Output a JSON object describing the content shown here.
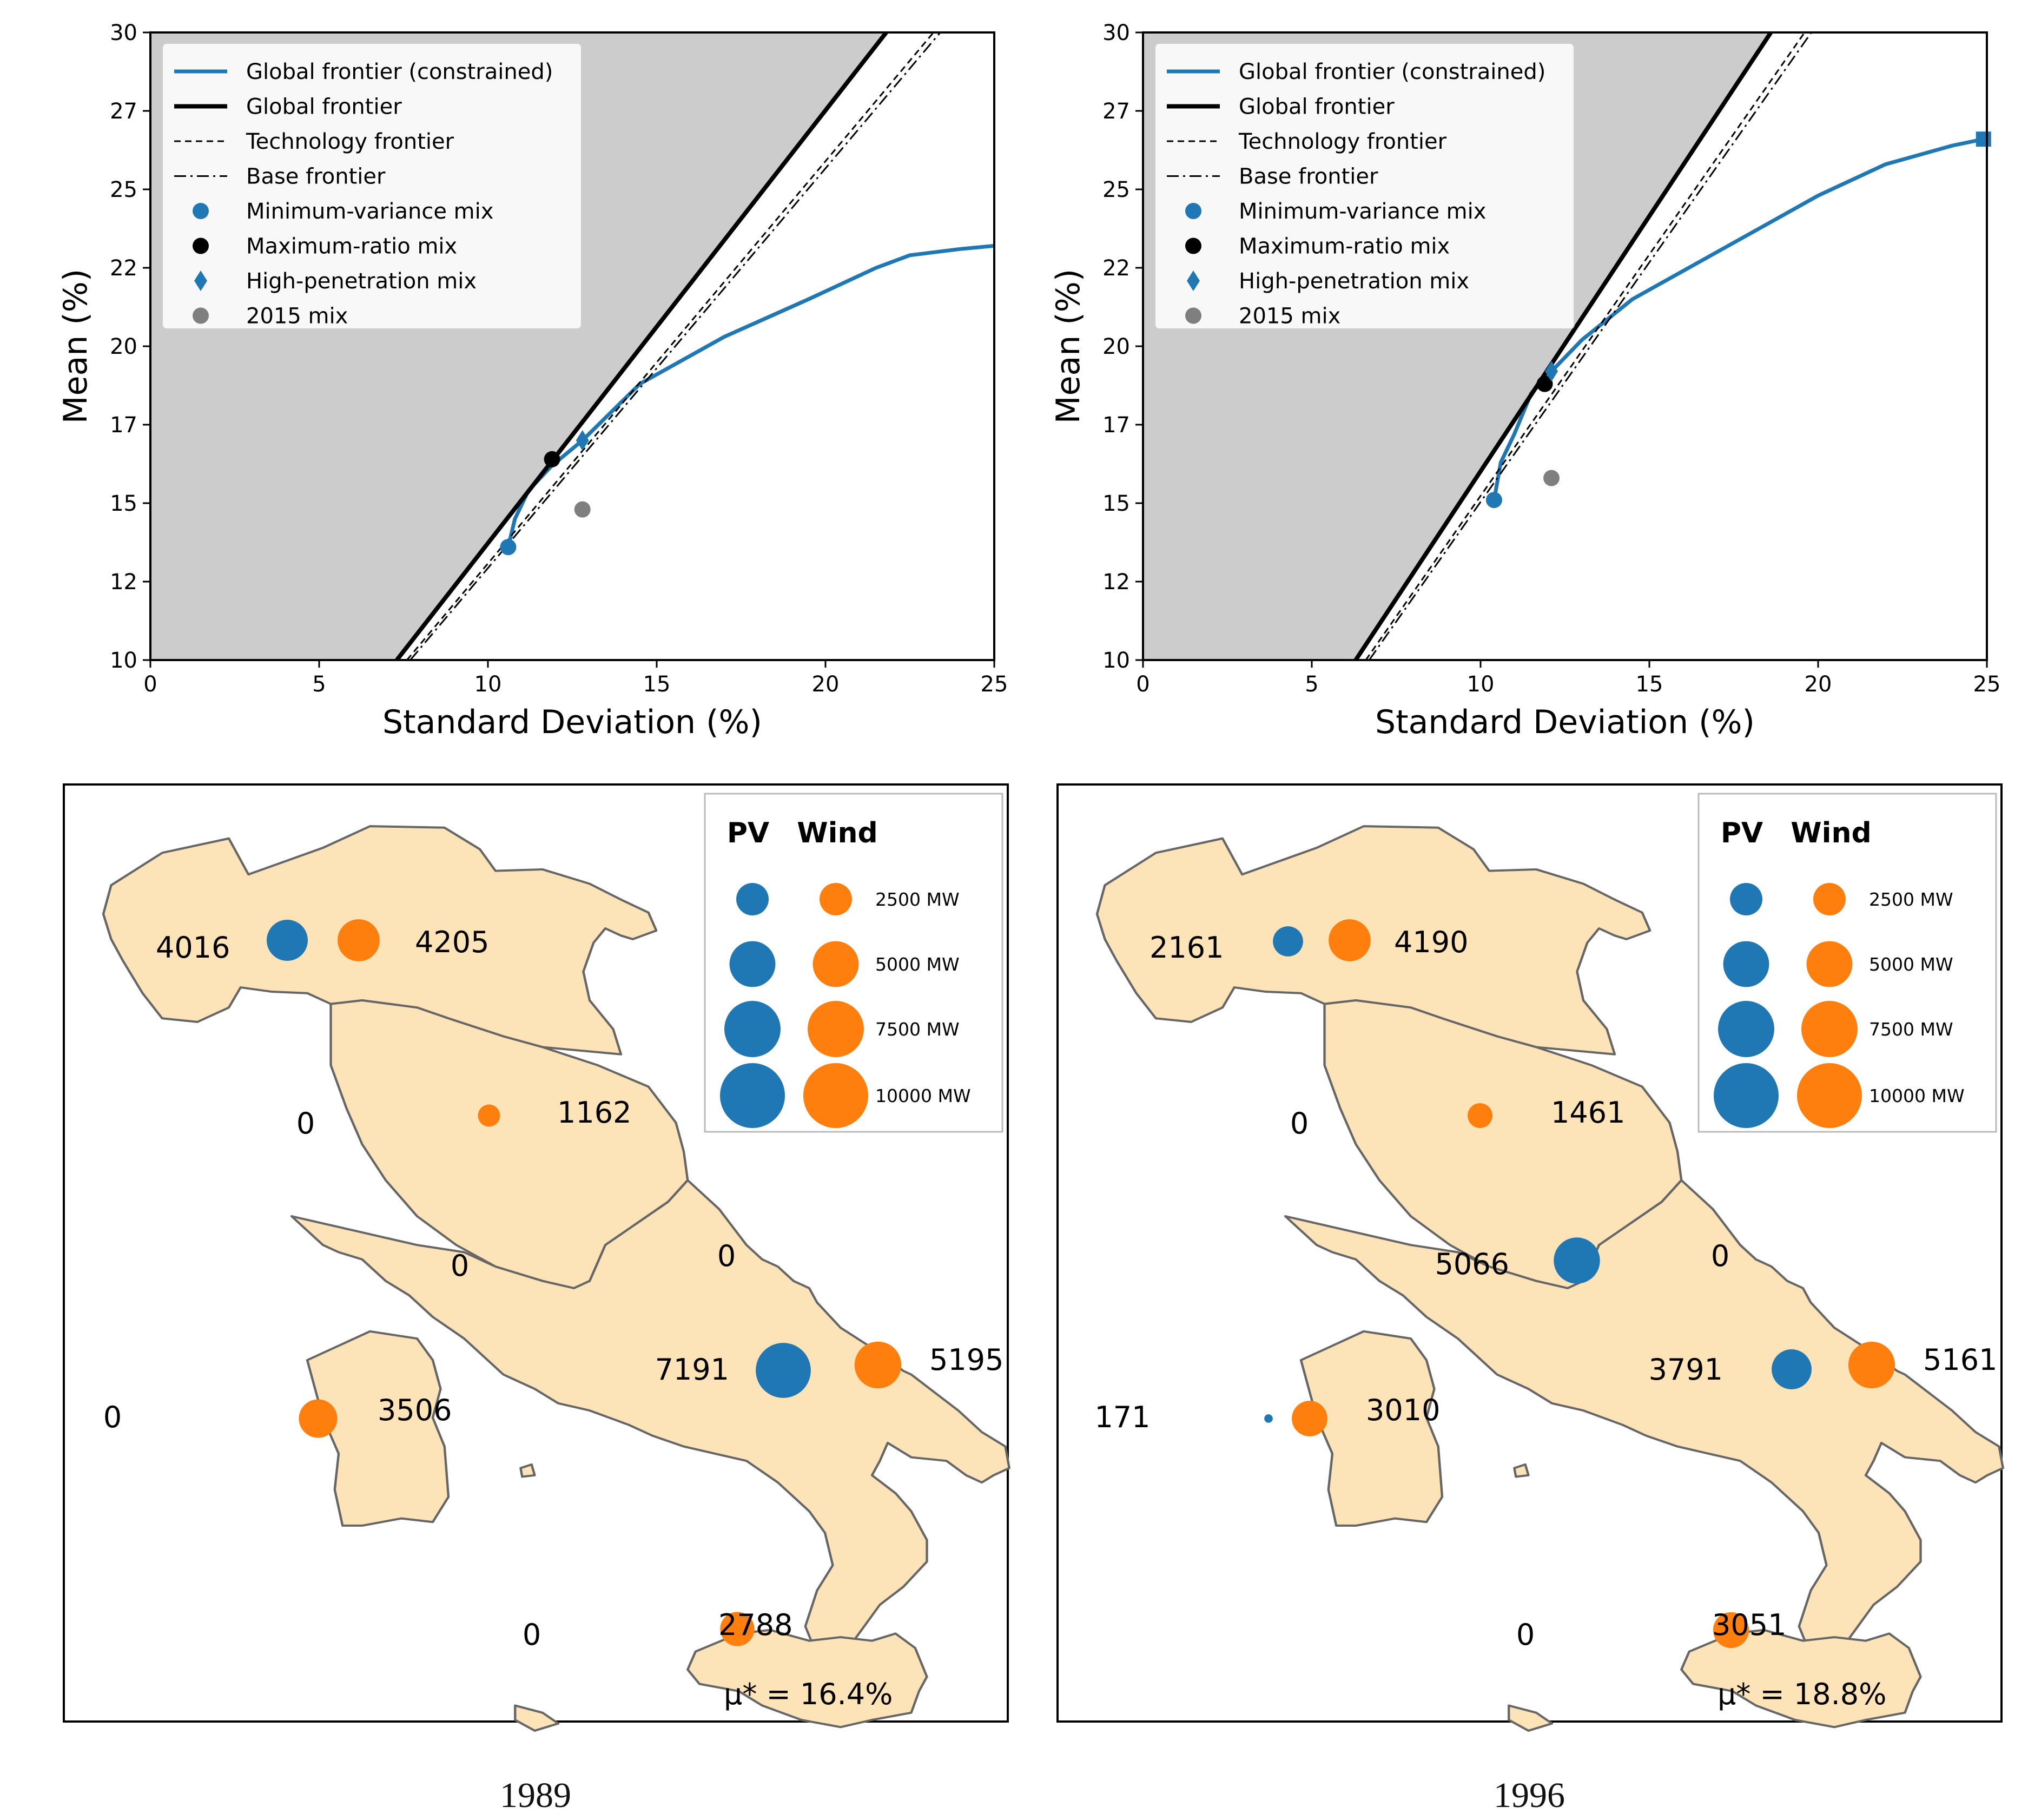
{
  "colors": {
    "pv": "#1f77b4",
    "wind": "#ff7f0e",
    "shade": "#cccccc",
    "land": "#fde4b8",
    "gray_point": "#7f7f7f"
  },
  "chart_data": [
    {
      "type": "line",
      "panel": "top-left",
      "xlabel": "Standard Deviation (%)",
      "ylabel": "Mean (%)",
      "xlim": [
        0,
        25
      ],
      "ylim": [
        10,
        30
      ],
      "xticks": [
        "0",
        "5",
        "10",
        "15",
        "20",
        "25"
      ],
      "yticks": [
        "10",
        "12",
        "15",
        "17",
        "20",
        "22",
        "25",
        "27",
        "30"
      ],
      "legend": [
        "Global frontier (constrained)",
        "Global frontier",
        "Technology frontier",
        "Base frontier",
        "Minimum-variance mix",
        "Maximum-ratio mix",
        "High-penetration mix",
        "2015 mix"
      ],
      "series": [
        {
          "name": "Global frontier (constrained)",
          "x": [
            10.6,
            10.8,
            11.2,
            11.9,
            12.8,
            14.5,
            17.0,
            19.5,
            21.5,
            22.5,
            24.0,
            25.0
          ],
          "y": [
            13.6,
            14.5,
            15.4,
            16.2,
            17.0,
            18.8,
            20.3,
            21.5,
            22.5,
            22.9,
            23.1,
            23.2
          ]
        },
        {
          "name": "Global frontier",
          "x": [
            7.3,
            21.8
          ],
          "y": [
            10,
            30
          ]
        },
        {
          "name": "Technology frontier",
          "x": [
            7.6,
            23.2
          ],
          "y": [
            10,
            30
          ]
        },
        {
          "name": "Base frontier",
          "x": [
            7.7,
            23.4
          ],
          "y": [
            10,
            30
          ]
        }
      ],
      "points": {
        "min_variance": [
          10.6,
          13.6
        ],
        "max_ratio": [
          11.9,
          16.4
        ],
        "high_penetration": [
          12.8,
          17.0
        ],
        "mix_2015": [
          12.8,
          14.8
        ]
      }
    },
    {
      "type": "line",
      "panel": "top-right",
      "xlabel": "Standard Deviation (%)",
      "ylabel": "Mean (%)",
      "xlim": [
        0,
        25
      ],
      "ylim": [
        10,
        30
      ],
      "xticks": [
        "0",
        "5",
        "10",
        "15",
        "20",
        "25"
      ],
      "yticks": [
        "10",
        "12",
        "15",
        "17",
        "20",
        "22",
        "25",
        "27",
        "30"
      ],
      "legend": [
        "Global frontier (constrained)",
        "Global frontier",
        "Technology frontier",
        "Base frontier",
        "Minimum-variance mix",
        "Maximum-ratio mix",
        "High-penetration mix",
        "2015 mix"
      ],
      "series": [
        {
          "name": "Global frontier (constrained)",
          "x": [
            10.4,
            10.6,
            11.0,
            11.5,
            12.1,
            13.0,
            14.5,
            17.0,
            20.0,
            22.0,
            24.0,
            24.9
          ],
          "y": [
            15.1,
            16.3,
            17.2,
            18.5,
            19.2,
            20.2,
            21.5,
            23.0,
            24.8,
            25.8,
            26.4,
            26.6
          ]
        },
        {
          "name": "Global frontier",
          "x": [
            6.3,
            18.6
          ],
          "y": [
            10,
            30
          ]
        },
        {
          "name": "Technology frontier",
          "x": [
            6.6,
            19.6
          ],
          "y": [
            10,
            30
          ]
        },
        {
          "name": "Base frontier",
          "x": [
            6.7,
            19.8
          ],
          "y": [
            10,
            30
          ]
        }
      ],
      "points": {
        "min_variance": [
          10.4,
          15.1
        ],
        "max_ratio": [
          11.9,
          18.8
        ],
        "high_penetration": [
          12.1,
          19.2
        ],
        "mix_2015": [
          12.1,
          15.8
        ],
        "end_square": [
          24.9,
          26.6
        ]
      }
    }
  ],
  "maps": [
    {
      "caption": "1989",
      "mu_label": "μ* = 16.4%",
      "legend_title_pv": "PV",
      "legend_title_wind": "Wind",
      "legend_sizes": [
        "2500 MW",
        "5000 MW",
        "7500 MW",
        "10000 MW"
      ],
      "labels": [
        "4016",
        "4205",
        "0",
        "1162",
        "0",
        "0",
        "7191",
        "5195",
        "0",
        "3506",
        "0",
        "2788"
      ]
    },
    {
      "caption": "1996",
      "mu_label": "μ* = 18.8%",
      "legend_title_pv": "PV",
      "legend_title_wind": "Wind",
      "legend_sizes": [
        "2500 MW",
        "5000 MW",
        "7500 MW",
        "10000 MW"
      ],
      "labels": [
        "2161",
        "4190",
        "0",
        "1461",
        "5066",
        "0",
        "3791",
        "5161",
        "171",
        "3010",
        "0",
        "3051"
      ]
    }
  ]
}
